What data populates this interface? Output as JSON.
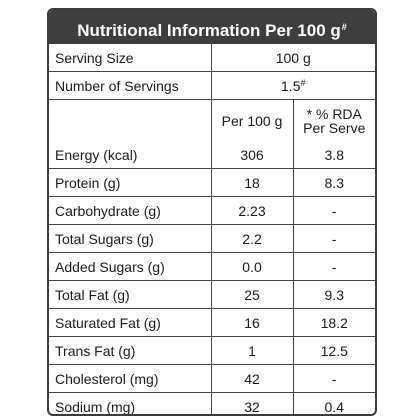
{
  "header": {
    "title": "Nutritional Information Per 100 g",
    "title_mark": "#"
  },
  "serving": {
    "size_label": "Serving Size",
    "size_value": "100 g",
    "count_label": "Number of Servings",
    "count_value": "1.5",
    "count_mark": "#"
  },
  "columns": {
    "per100": "Per 100 g",
    "rda_line1": "* % RDA",
    "rda_line2": "Per Serve"
  },
  "rows": [
    {
      "name": "Energy (kcal)",
      "per100": "306",
      "rda": "3.8"
    },
    {
      "name": "Protein (g)",
      "per100": "18",
      "rda": "8.3"
    },
    {
      "name": "Carbohydrate (g)",
      "per100": "2.23",
      "rda": "-"
    },
    {
      "name": "Total Sugars (g)",
      "per100": "2.2",
      "rda": "-"
    },
    {
      "name": "Added Sugars (g)",
      "per100": "0.0",
      "rda": "-"
    },
    {
      "name": "Total Fat (g)",
      "per100": "25",
      "rda": "9.3"
    },
    {
      "name": "Saturated Fat (g)",
      "per100": "16",
      "rda": "18.2"
    },
    {
      "name": "Trans Fat (g)",
      "per100": "1",
      "rda": "12.5"
    },
    {
      "name": "Cholesterol (mg)",
      "per100": "42",
      "rda": "-"
    },
    {
      "name": "Sodium (mg)",
      "per100": "32",
      "rda": "0.4"
    }
  ]
}
